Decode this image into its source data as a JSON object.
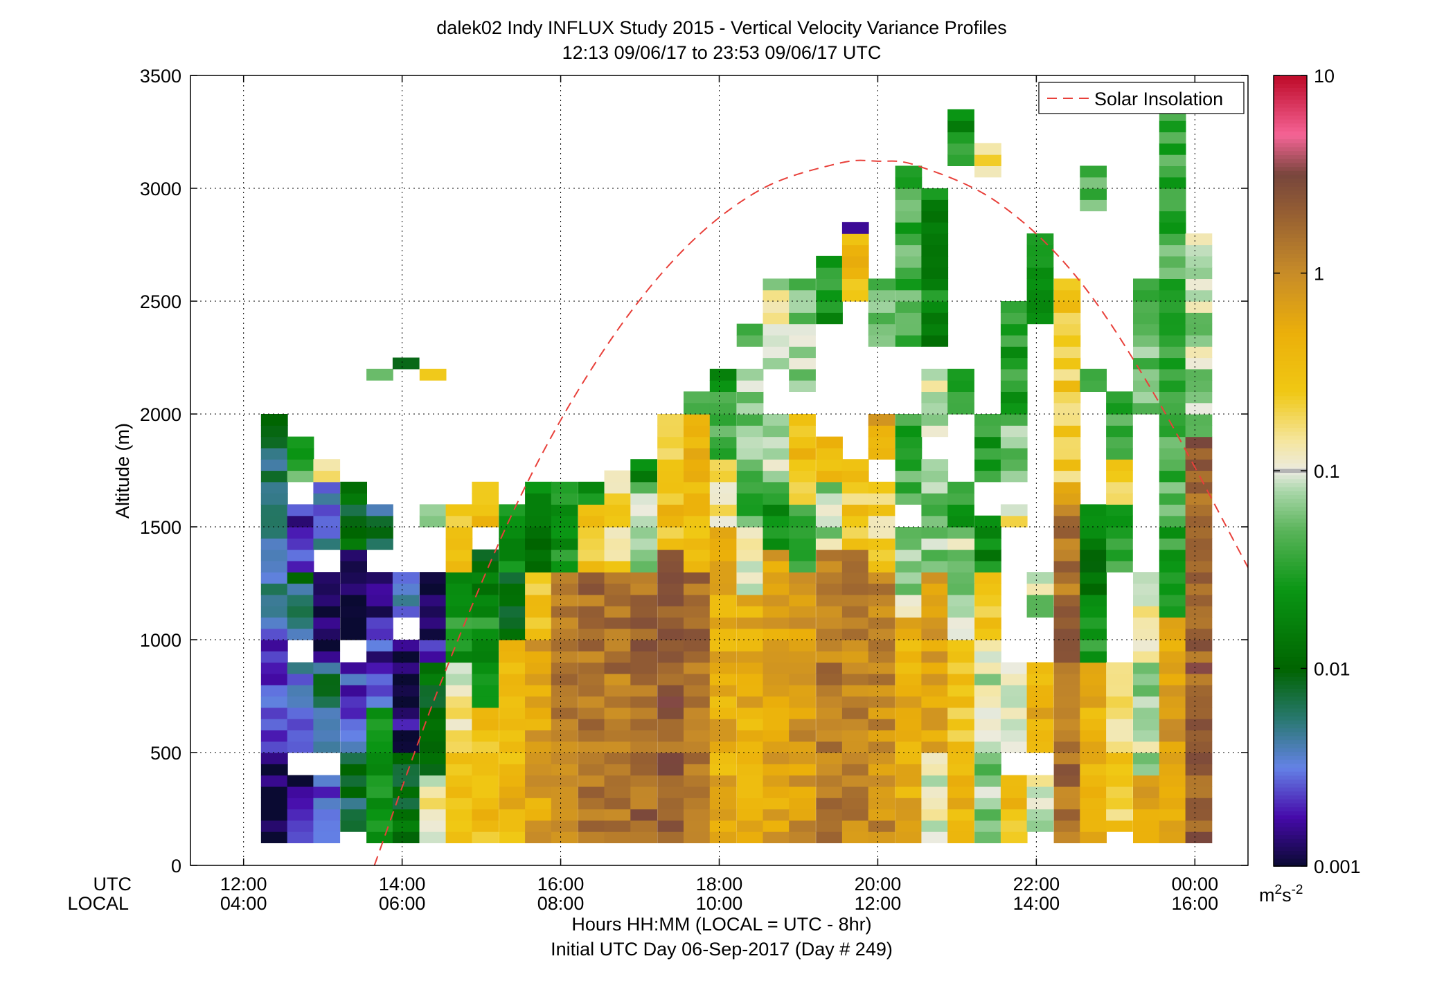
{
  "chart_data": {
    "type": "heatmap",
    "title": "dalek02 Indy INFLUX Study 2015 - Vertical Velocity Variance Profiles",
    "subtitle": "12:13 09/06/17 to 23:53 09/06/17  UTC",
    "ylabel": "Altitude (m)",
    "xlabel": "Hours HH:MM  (LOCAL = UTC - 8hr)",
    "xlabel2": "Initial UTC Day 06-Sep-2017 (Day # 249)",
    "row_label_utc": "UTC",
    "row_label_local": "LOCAL",
    "xlim_hours": [
      11.33,
      24.67
    ],
    "ylim": [
      0,
      3500
    ],
    "y_ticks": [
      0,
      500,
      1000,
      1500,
      2000,
      2500,
      3000,
      3500
    ],
    "y_tick_labels": [
      "0",
      "500",
      "1000",
      "1500",
      "2000",
      "2500",
      "3000",
      "3500"
    ],
    "x_ticks": [
      12,
      14,
      16,
      18,
      20,
      22,
      24
    ],
    "x_tick_labels_utc": [
      "12:00",
      "14:00",
      "16:00",
      "18:00",
      "20:00",
      "22:00",
      "00:00"
    ],
    "x_tick_labels_local": [
      "04:00",
      "06:00",
      "08:00",
      "10:00",
      "12:00",
      "14:00",
      "16:00"
    ],
    "grid": true,
    "legend": {
      "entries": [
        "Solar Insolation"
      ],
      "location": "top-right",
      "line_color": "#e8403a"
    },
    "colorbar": {
      "scale": "log",
      "min": 0.001,
      "max": 10,
      "tick_values": [
        10,
        1,
        0.1,
        0.01,
        0.001
      ],
      "tick_labels": [
        "10",
        "1",
        "0.1",
        "0.01",
        "0.001"
      ],
      "units": "m",
      "units_sup1": "2",
      "units_mid": "s",
      "units_sup2": "-2",
      "marker_value": 0.1
    },
    "solar_insolation": {
      "x_hours": [
        13.65,
        14.5,
        15.5,
        16.5,
        17.5,
        18.5,
        19.5,
        20.0,
        20.5,
        21.5,
        22.5,
        23.5,
        24.67
      ],
      "y": [
        0,
        820,
        1640,
        2260,
        2710,
        2990,
        3110,
        3120,
        3100,
        2940,
        2610,
        2080,
        1320
      ]
    },
    "time_bin_hours": 0.333,
    "altitude_bin_m": 50,
    "z_log10_columns": [
      {
        "t": 12.22,
        "cells": [
          [
            100,
            2000,
            -2.3
          ],
          [
            100,
            500,
            -3.0
          ],
          [
            500,
            1000,
            -2.6
          ],
          [
            1000,
            1500,
            -2.4
          ],
          [
            1500,
            2000,
            -2.2
          ]
        ]
      },
      {
        "t": 12.55,
        "cells": [
          [
            100,
            400,
            -2.8
          ],
          [
            500,
            900,
            -2.5
          ],
          [
            1000,
            1300,
            -2.2
          ],
          [
            1300,
            1600,
            -2.7
          ],
          [
            1700,
            1900,
            -1.4
          ]
        ]
      },
      {
        "t": 12.88,
        "cells": [
          [
            100,
            400,
            -2.6
          ],
          [
            500,
            900,
            -2.2
          ],
          [
            900,
            1300,
            -2.8
          ],
          [
            1400,
            1700,
            -2.4
          ],
          [
            1700,
            1800,
            -0.7
          ]
        ]
      },
      {
        "t": 13.22,
        "cells": [
          [
            150,
            500,
            -2.1
          ],
          [
            500,
            900,
            -2.6
          ],
          [
            1000,
            1400,
            -2.9
          ],
          [
            1400,
            1700,
            -2.0
          ]
        ]
      },
      {
        "t": 13.55,
        "cells": [
          [
            100,
            700,
            -1.7
          ],
          [
            700,
            1100,
            -2.7
          ],
          [
            1100,
            1300,
            -2.9
          ],
          [
            1400,
            1600,
            -2.2
          ],
          [
            2150,
            2200,
            -1.2
          ]
        ]
      },
      {
        "t": 13.88,
        "cells": [
          [
            100,
            500,
            -2.0
          ],
          [
            500,
            1000,
            -2.9
          ],
          [
            1100,
            1300,
            -2.5
          ],
          [
            2200,
            2250,
            -2.2
          ]
        ]
      },
      {
        "t": 14.22,
        "cells": [
          [
            100,
            400,
            -0.9
          ],
          [
            400,
            900,
            -1.9
          ],
          [
            900,
            1300,
            -2.8
          ],
          [
            1500,
            1600,
            -1.3
          ],
          [
            2150,
            2200,
            -0.4
          ]
        ]
      },
      {
        "t": 14.55,
        "cells": [
          [
            100,
            500,
            -0.5
          ],
          [
            500,
            900,
            -0.9
          ],
          [
            900,
            1300,
            -1.6
          ],
          [
            1300,
            1600,
            -0.6
          ]
        ]
      },
      {
        "t": 14.88,
        "cells": [
          [
            100,
            700,
            -0.5
          ],
          [
            700,
            1100,
            -1.6
          ],
          [
            1100,
            1400,
            -1.9
          ],
          [
            1500,
            1700,
            -0.5
          ]
        ]
      },
      {
        "t": 15.22,
        "cells": [
          [
            100,
            1000,
            -0.4
          ],
          [
            1000,
            1300,
            -1.9
          ],
          [
            1300,
            1600,
            -1.6
          ]
        ]
      },
      {
        "t": 15.55,
        "cells": [
          [
            100,
            1000,
            -0.2
          ],
          [
            1000,
            1300,
            -0.5
          ],
          [
            1300,
            1700,
            -1.8
          ]
        ]
      },
      {
        "t": 15.88,
        "cells": [
          [
            100,
            1300,
            0.1
          ],
          [
            1300,
            1700,
            -1.6
          ]
        ]
      },
      {
        "t": 16.22,
        "cells": [
          [
            100,
            1300,
            0.2
          ],
          [
            1300,
            1600,
            -0.6
          ],
          [
            1600,
            1700,
            -1.7
          ]
        ]
      },
      {
        "t": 16.55,
        "cells": [
          [
            100,
            1300,
            0.15
          ],
          [
            1300,
            1750,
            -0.7
          ]
        ]
      },
      {
        "t": 16.88,
        "cells": [
          [
            100,
            1300,
            0.25
          ],
          [
            1300,
            1700,
            -1.2
          ],
          [
            1700,
            1800,
            -1.7
          ]
        ]
      },
      {
        "t": 17.22,
        "cells": [
          [
            100,
            1400,
            0.3
          ],
          [
            1400,
            1800,
            -0.5
          ],
          [
            1800,
            2000,
            -0.6
          ]
        ]
      },
      {
        "t": 17.55,
        "cells": [
          [
            100,
            1300,
            0.2
          ],
          [
            1300,
            2000,
            -0.4
          ],
          [
            2000,
            2100,
            -1.5
          ]
        ]
      },
      {
        "t": 17.88,
        "cells": [
          [
            100,
            1500,
            -0.3
          ],
          [
            1500,
            1800,
            -0.8
          ],
          [
            1800,
            2100,
            -1.3
          ],
          [
            2100,
            2200,
            -1.8
          ]
        ]
      },
      {
        "t": 18.22,
        "cells": [
          [
            100,
            1200,
            -0.3
          ],
          [
            1200,
            1500,
            -0.9
          ],
          [
            1500,
            1800,
            -1.4
          ],
          [
            1800,
            2200,
            -1.2
          ],
          [
            2300,
            2400,
            -1.5
          ]
        ]
      },
      {
        "t": 18.55,
        "cells": [
          [
            100,
            1400,
            -0.2
          ],
          [
            1400,
            1700,
            -1.6
          ],
          [
            1700,
            2000,
            -1.1
          ],
          [
            2200,
            2600,
            -1.0
          ]
        ]
      },
      {
        "t": 18.88,
        "cells": [
          [
            100,
            1300,
            -0.1
          ],
          [
            1300,
            1600,
            -1.4
          ],
          [
            1600,
            2000,
            -0.5
          ],
          [
            2100,
            2600,
            -1.2
          ]
        ]
      },
      {
        "t": 19.22,
        "cells": [
          [
            100,
            1400,
            0.1
          ],
          [
            1400,
            1700,
            -1.1
          ],
          [
            1700,
            1900,
            -0.4
          ],
          [
            2400,
            2700,
            -1.6
          ]
        ]
      },
      {
        "t": 19.55,
        "cells": [
          [
            100,
            1400,
            0.05
          ],
          [
            1400,
            1800,
            -0.6
          ],
          [
            2500,
            2800,
            -0.4
          ],
          [
            2800,
            2850,
            -3.0
          ]
        ]
      },
      {
        "t": 19.88,
        "cells": [
          [
            100,
            1300,
            0.0
          ],
          [
            1300,
            1700,
            -0.7
          ],
          [
            1800,
            2000,
            -0.2
          ],
          [
            2300,
            2600,
            -1.3
          ]
        ]
      },
      {
        "t": 20.22,
        "cells": [
          [
            100,
            1100,
            -0.3
          ],
          [
            1100,
            1500,
            -1.1
          ],
          [
            1600,
            2000,
            -1.4
          ],
          [
            2300,
            3100,
            -1.4
          ]
        ]
      },
      {
        "t": 20.55,
        "cells": [
          [
            100,
            500,
            -1.0
          ],
          [
            500,
            1300,
            -0.2
          ],
          [
            1300,
            1800,
            -1.2
          ],
          [
            1900,
            2200,
            -1.0
          ],
          [
            2300,
            3000,
            -1.7
          ]
        ]
      },
      {
        "t": 20.88,
        "cells": [
          [
            100,
            400,
            -0.4
          ],
          [
            400,
            1000,
            -0.6
          ],
          [
            1000,
            1500,
            -1.1
          ],
          [
            1500,
            1700,
            -1.5
          ],
          [
            2000,
            2200,
            -1.4
          ],
          [
            3100,
            3350,
            -1.6
          ]
        ]
      },
      {
        "t": 21.22,
        "cells": [
          [
            100,
            600,
            -1.2
          ],
          [
            600,
            1000,
            -1.0
          ],
          [
            1000,
            1300,
            -0.6
          ],
          [
            1300,
            1550,
            -1.7
          ],
          [
            1700,
            2000,
            -1.5
          ],
          [
            3050,
            3200,
            -0.7
          ]
        ]
      },
      {
        "t": 21.55,
        "cells": [
          [
            100,
            400,
            -0.5
          ],
          [
            500,
            900,
            -1.1
          ],
          [
            1500,
            1600,
            -0.9
          ],
          [
            1700,
            2000,
            -1.2
          ],
          [
            2000,
            2500,
            -1.5
          ]
        ]
      },
      {
        "t": 21.88,
        "cells": [
          [
            150,
            400,
            -1.0
          ],
          [
            500,
            900,
            -0.3
          ],
          [
            1100,
            1300,
            -1.1
          ],
          [
            2400,
            2800,
            -1.6
          ]
        ]
      },
      {
        "t": 22.22,
        "cells": [
          [
            100,
            1600,
            0.2
          ],
          [
            1600,
            1700,
            -0.4
          ],
          [
            1700,
            2600,
            -0.6
          ]
        ]
      },
      {
        "t": 22.55,
        "cells": [
          [
            100,
            900,
            -0.3
          ],
          [
            900,
            1200,
            -1.6
          ],
          [
            1200,
            1600,
            -1.8
          ],
          [
            2100,
            2200,
            -1.2
          ],
          [
            2900,
            3100,
            -1.4
          ]
        ]
      },
      {
        "t": 22.88,
        "cells": [
          [
            150,
            500,
            -0.6
          ],
          [
            500,
            900,
            -0.7
          ],
          [
            1300,
            1600,
            -1.5
          ],
          [
            1600,
            1800,
            -0.6
          ],
          [
            1800,
            2100,
            -1.4
          ]
        ]
      },
      {
        "t": 23.22,
        "cells": [
          [
            100,
            400,
            -0.3
          ],
          [
            400,
            900,
            -1.1
          ],
          [
            900,
            1300,
            -0.9
          ],
          [
            2000,
            2600,
            -1.3
          ]
        ]
      },
      {
        "t": 23.55,
        "cells": [
          [
            100,
            1100,
            -0.2
          ],
          [
            1100,
            1500,
            -1.5
          ],
          [
            1500,
            3400,
            -1.4
          ]
        ]
      },
      {
        "t": 23.88,
        "cells": [
          [
            100,
            1900,
            0.3
          ],
          [
            1900,
            2800,
            -1.1
          ]
        ]
      }
    ]
  }
}
